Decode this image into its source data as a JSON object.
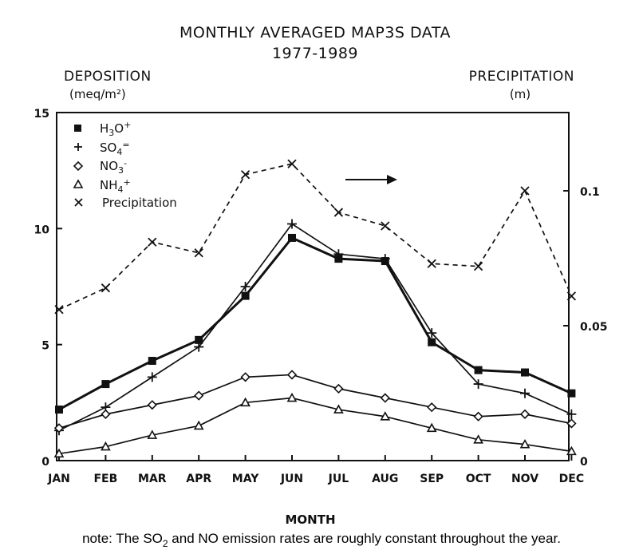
{
  "chart_data": {
    "type": "line",
    "title": "MONTHLY AVERAGED MAP3S DATA",
    "subtitle": "1977-1989",
    "xlabel": "MONTH",
    "ylabel": "DEPOSITION",
    "ylabel_unit": "(meq/m²)",
    "y2label": "PRECIPITATION",
    "y2label_unit": "(m)",
    "categories": [
      "JAN",
      "FEB",
      "MAR",
      "APR",
      "MAY",
      "JUN",
      "JUL",
      "AUG",
      "SEP",
      "OCT",
      "NOV",
      "DEC"
    ],
    "ylim": [
      0,
      15
    ],
    "yticks": [
      0,
      5,
      10,
      15
    ],
    "y2lim": [
      0,
      0.129
    ],
    "y2ticks": [
      0,
      0.05,
      0.1
    ],
    "y2ticklabels": [
      "0",
      "0.05",
      "0.1"
    ],
    "legend_position": "top-left",
    "arrow": "right",
    "series": [
      {
        "name": "H3O+",
        "marker": "square",
        "axis": "left",
        "dash": false,
        "values": [
          2.2,
          3.3,
          4.3,
          5.2,
          7.1,
          9.6,
          8.7,
          8.6,
          5.1,
          3.9,
          3.8,
          2.9
        ]
      },
      {
        "name": "SO4=",
        "marker": "plus",
        "axis": "left",
        "dash": false,
        "values": [
          1.3,
          2.3,
          3.6,
          4.9,
          7.5,
          10.2,
          8.9,
          8.7,
          5.5,
          3.3,
          2.9,
          2.0
        ]
      },
      {
        "name": "NO3-",
        "marker": "diamond",
        "axis": "left",
        "dash": false,
        "values": [
          1.4,
          2.0,
          2.4,
          2.8,
          3.6,
          3.7,
          3.1,
          2.7,
          2.3,
          1.9,
          2.0,
          1.6
        ]
      },
      {
        "name": "NH4+",
        "marker": "triangle",
        "axis": "left",
        "dash": false,
        "values": [
          0.3,
          0.6,
          1.1,
          1.5,
          2.5,
          2.7,
          2.2,
          1.9,
          1.4,
          0.9,
          0.7,
          0.4
        ]
      },
      {
        "name": "Precipitation",
        "marker": "x",
        "axis": "right",
        "dash": true,
        "values": [
          0.056,
          0.064,
          0.081,
          0.077,
          0.106,
          0.11,
          0.092,
          0.087,
          0.073,
          0.072,
          0.1,
          0.061
        ]
      }
    ],
    "note": "note: The SO2 and NO emission rates are roughly constant throughout the year."
  }
}
